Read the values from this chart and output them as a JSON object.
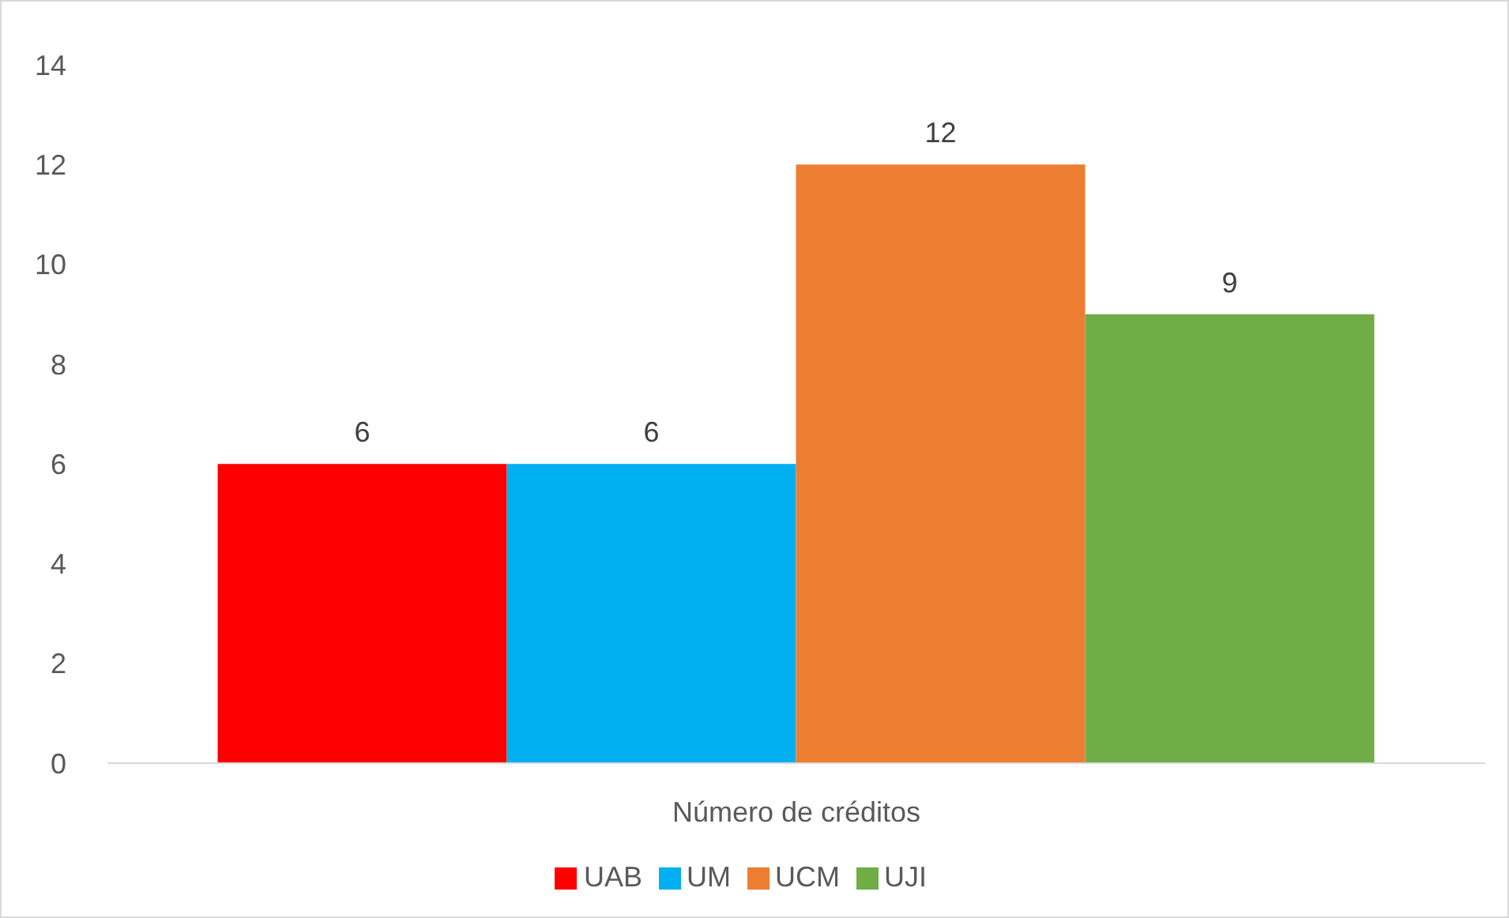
{
  "chart_data": {
    "type": "bar",
    "categories": [
      "Número de créditos"
    ],
    "series": [
      {
        "name": "UAB",
        "color": "#ff0000",
        "values": [
          6
        ]
      },
      {
        "name": "UM",
        "color": "#00b0f0",
        "values": [
          6
        ]
      },
      {
        "name": "UCM",
        "color": "#ed7d31",
        "values": [
          12
        ]
      },
      {
        "name": "UJI",
        "color": "#70ad47",
        "values": [
          9
        ]
      }
    ],
    "ylim": [
      0,
      14
    ],
    "yticks": [
      0,
      2,
      4,
      6,
      8,
      10,
      12,
      14
    ],
    "grid": false,
    "legend": "bottom",
    "data_labels": true
  }
}
